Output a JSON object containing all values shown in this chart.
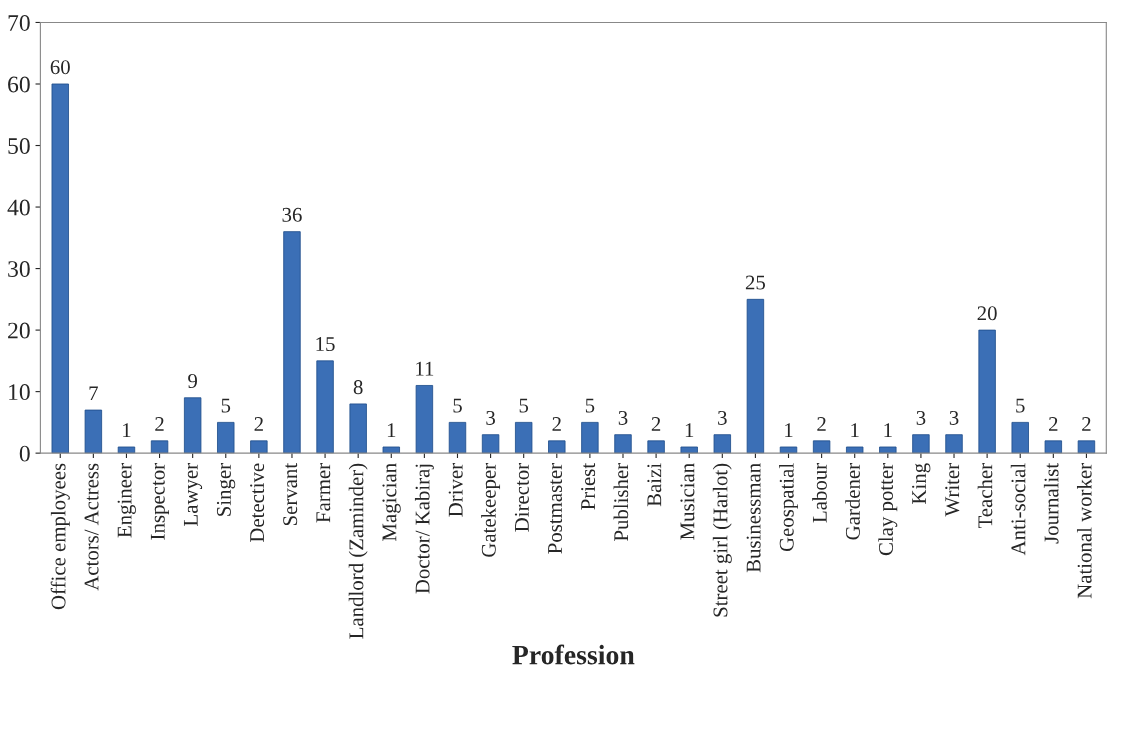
{
  "chart_data": {
    "type": "bar",
    "xlabel": "Profession",
    "categories": [
      "Office employees",
      "Actors/ Actress",
      "Engineer",
      "Inspector",
      "Lawyer",
      "Singer",
      "Detective",
      "Servant",
      "Farmer",
      "Landlord (Zaminder)",
      "Magician",
      "Doctor/ Kabiraj",
      "Driver",
      "Gatekeeper",
      "Director",
      "Postmaster",
      "Priest",
      "Publisher",
      "Baizi",
      "Musician",
      "Street girl (Harlot)",
      "Businessman",
      "Geospatial",
      "Labour",
      "Gardener",
      "Clay potter",
      "King",
      "Writer",
      "Teacher",
      "Anti-social",
      "Journalist",
      "National worker"
    ],
    "values": [
      60,
      7,
      1,
      2,
      9,
      5,
      2,
      36,
      15,
      8,
      1,
      11,
      5,
      3,
      5,
      2,
      5,
      3,
      2,
      1,
      3,
      25,
      1,
      2,
      1,
      1,
      3,
      3,
      20,
      5,
      2,
      2
    ],
    "color": "#3b6fb6",
    "ylim": [
      0,
      70
    ],
    "yticks": [
      0,
      10,
      20,
      30,
      40,
      50,
      60,
      70
    ],
    "data_labels": true,
    "grid": false,
    "legend": false
  }
}
